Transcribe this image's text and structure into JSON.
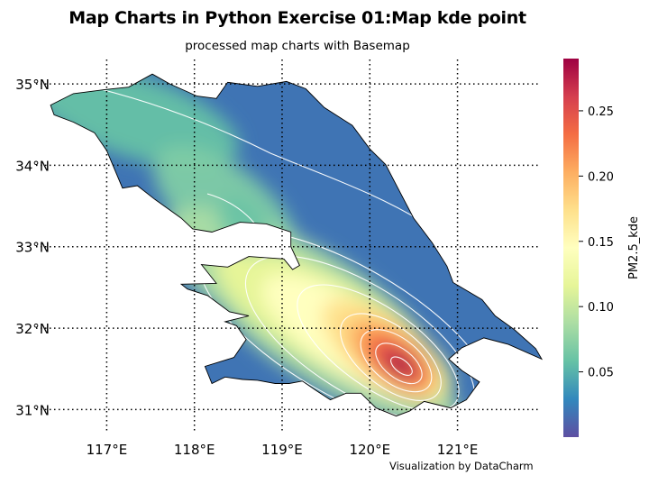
{
  "chart_data": {
    "type": "heatmap",
    "title": "Map Charts in Python Exercise 01:Map kde point",
    "subtitle": "processed map charts with Basemap",
    "credit": "Visualization by DataCharm",
    "colorbar_label": "PM2.5_kde",
    "colorbar_ticks": [
      {
        "value": 0.05,
        "label": "0.05"
      },
      {
        "value": 0.1,
        "label": "0.10"
      },
      {
        "value": 0.15,
        "label": "0.15"
      },
      {
        "value": 0.2,
        "label": "0.20"
      },
      {
        "value": 0.25,
        "label": "0.25"
      }
    ],
    "colorbar_range": [
      0.0,
      0.29
    ],
    "colormap": "Spectral_r",
    "colormap_stops": [
      "#5e4fa2",
      "#3288bd",
      "#66c2a5",
      "#abdda4",
      "#e6f598",
      "#ffffbf",
      "#fee08b",
      "#fdae61",
      "#f46d43",
      "#d53e4f",
      "#9e0142"
    ],
    "lon_range": [
      116.4,
      121.95
    ],
    "lat_range": [
      30.75,
      35.2
    ],
    "meridians": [
      {
        "value": 117,
        "label": "117°E"
      },
      {
        "value": 118,
        "label": "118°E"
      },
      {
        "value": 119,
        "label": "119°E"
      },
      {
        "value": 120,
        "label": "120°E"
      },
      {
        "value": 121,
        "label": "121°E"
      }
    ],
    "parallels": [
      {
        "value": 31,
        "label": "31°N"
      },
      {
        "value": 32,
        "label": "32°N"
      },
      {
        "value": 33,
        "label": "33°N"
      },
      {
        "value": 34,
        "label": "34°N"
      },
      {
        "value": 35,
        "label": "35°N"
      }
    ],
    "region_boundary_lonlat": [
      [
        116.36,
        34.74
      ],
      [
        116.62,
        34.88
      ],
      [
        116.98,
        34.93
      ],
      [
        117.25,
        34.96
      ],
      [
        117.52,
        35.12
      ],
      [
        117.72,
        35.0
      ],
      [
        118.03,
        34.85
      ],
      [
        118.25,
        34.82
      ],
      [
        118.38,
        35.02
      ],
      [
        118.72,
        34.97
      ],
      [
        119.05,
        35.03
      ],
      [
        119.27,
        34.94
      ],
      [
        119.48,
        34.71
      ],
      [
        119.8,
        34.49
      ],
      [
        120.0,
        34.2
      ],
      [
        120.18,
        34.01
      ],
      [
        120.32,
        33.72
      ],
      [
        120.5,
        33.35
      ],
      [
        120.71,
        33.05
      ],
      [
        120.88,
        32.76
      ],
      [
        120.95,
        32.56
      ],
      [
        121.28,
        32.35
      ],
      [
        121.43,
        32.15
      ],
      [
        121.65,
        31.98
      ],
      [
        121.89,
        31.75
      ],
      [
        121.96,
        31.62
      ],
      [
        121.58,
        31.8
      ],
      [
        121.3,
        31.88
      ],
      [
        121.05,
        31.76
      ],
      [
        120.9,
        31.62
      ],
      [
        121.05,
        31.48
      ],
      [
        121.25,
        31.34
      ],
      [
        121.1,
        31.12
      ],
      [
        120.92,
        31.02
      ],
      [
        120.62,
        31.1
      ],
      [
        120.45,
        30.98
      ],
      [
        120.3,
        30.92
      ],
      [
        120.07,
        31.02
      ],
      [
        119.9,
        31.2
      ],
      [
        119.73,
        31.2
      ],
      [
        119.55,
        31.12
      ],
      [
        119.38,
        31.24
      ],
      [
        119.23,
        31.35
      ],
      [
        119.08,
        31.32
      ],
      [
        118.92,
        31.32
      ],
      [
        118.72,
        31.36
      ],
      [
        118.55,
        31.37
      ],
      [
        118.35,
        31.4
      ],
      [
        118.2,
        31.32
      ],
      [
        118.12,
        31.53
      ],
      [
        118.45,
        31.64
      ],
      [
        118.59,
        31.86
      ],
      [
        118.48,
        32.03
      ],
      [
        118.35,
        32.08
      ],
      [
        118.62,
        32.15
      ],
      [
        118.4,
        32.2
      ],
      [
        118.15,
        32.4
      ],
      [
        117.92,
        32.48
      ],
      [
        117.85,
        32.54
      ],
      [
        118.25,
        32.55
      ],
      [
        118.08,
        32.78
      ],
      [
        118.38,
        32.75
      ],
      [
        118.62,
        32.88
      ],
      [
        119.02,
        32.85
      ],
      [
        119.12,
        32.72
      ],
      [
        119.2,
        32.77
      ],
      [
        119.1,
        33.0
      ],
      [
        119.1,
        33.18
      ],
      [
        118.82,
        33.28
      ],
      [
        118.52,
        33.3
      ],
      [
        118.2,
        33.18
      ],
      [
        117.98,
        33.22
      ],
      [
        117.85,
        33.35
      ],
      [
        117.55,
        33.58
      ],
      [
        117.35,
        33.75
      ],
      [
        117.18,
        33.72
      ],
      [
        117.0,
        34.18
      ],
      [
        116.86,
        34.4
      ],
      [
        116.62,
        34.53
      ],
      [
        116.4,
        34.62
      ],
      [
        116.36,
        34.74
      ]
    ],
    "kde_peak_lonlat": [
      120.3,
      31.6
    ],
    "kde_peak_value": 0.28
  }
}
